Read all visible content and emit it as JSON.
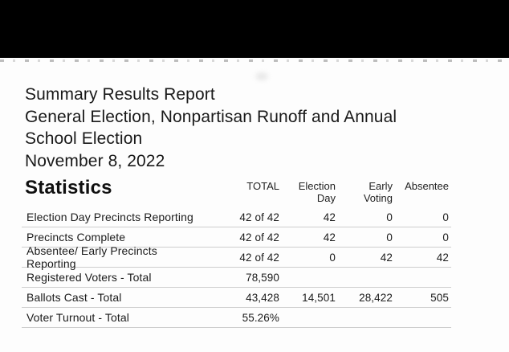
{
  "colors": {
    "top_bar": "#000000",
    "separator_line": "#cdcdcd",
    "text": "#1b1b1b"
  },
  "report": {
    "title_lines": [
      "Summary Results Report",
      "General Election, Nonpartisan Runoff and Annual",
      "School Election",
      "November 8, 2022"
    ]
  },
  "statistics": {
    "heading": "Statistics",
    "columns": [
      {
        "line1": "TOTAL",
        "line2": ""
      },
      {
        "line1": "Election",
        "line2": "Day"
      },
      {
        "line1": "Early",
        "line2": "Voting"
      },
      {
        "line1": "Absentee",
        "line2": ""
      }
    ],
    "rows": [
      {
        "label": "Election Day Precincts Reporting",
        "total": "42 of 42",
        "election_day": "42",
        "early_voting": "0",
        "absentee": "0"
      },
      {
        "label": "Precincts Complete",
        "total": "42 of 42",
        "election_day": "42",
        "early_voting": "0",
        "absentee": "0"
      },
      {
        "label": "Absentee/ Early Precincts Reporting",
        "total": "42 of 42",
        "election_day": "0",
        "early_voting": "42",
        "absentee": "42"
      },
      {
        "label": "Registered Voters - Total",
        "total": "78,590",
        "election_day": "",
        "early_voting": "",
        "absentee": ""
      },
      {
        "label": "Ballots Cast - Total",
        "total": "43,428",
        "election_day": "14,501",
        "early_voting": "28,422",
        "absentee": "505"
      },
      {
        "label": "Voter Turnout - Total",
        "total": "55.26%",
        "election_day": "",
        "early_voting": "",
        "absentee": ""
      }
    ]
  }
}
